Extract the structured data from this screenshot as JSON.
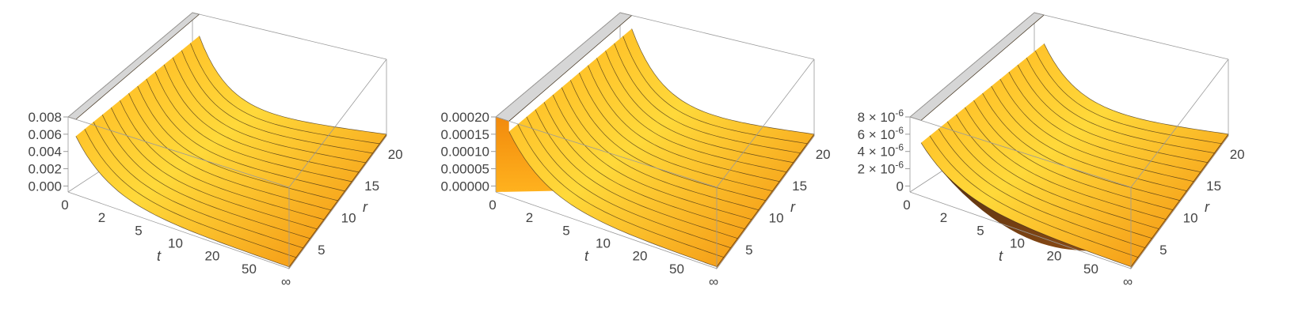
{
  "colors": {
    "surface_light": "#ffd93a",
    "surface_mid": "#ffb21e",
    "surface_dark": "#f28a0c",
    "side_dark": "#4a2b10",
    "top_face": "#d6d6d6",
    "box_line": "#9a9a9a",
    "mesh_line": "#3a2a14",
    "tick_text": "#444444"
  },
  "panels": [
    {
      "z_ticks": [
        "0.008",
        "0.006",
        "0.004",
        "0.002",
        "0.000"
      ],
      "t_axis_label": "t",
      "t_ticks": [
        "0",
        "2",
        "5",
        "10",
        "20",
        "50",
        "∞"
      ],
      "r_axis_label": "r",
      "r_ticks": [
        "20",
        "15",
        "10",
        "5"
      ]
    },
    {
      "z_ticks": [
        "0.00020",
        "0.00015",
        "0.00010",
        "0.00005",
        "0.00000"
      ],
      "t_axis_label": "t",
      "t_ticks": [
        "0",
        "2",
        "5",
        "10",
        "20",
        "50",
        "∞"
      ],
      "r_axis_label": "r",
      "r_ticks": [
        "20",
        "15",
        "10",
        "5"
      ]
    },
    {
      "z_ticks": [
        "8 × 10",
        "6 × 10",
        "4 × 10",
        "2 × 10",
        "0"
      ],
      "z_tick_exponents": [
        "-6",
        "-6",
        "-6",
        "-6",
        ""
      ],
      "t_axis_label": "t",
      "t_ticks": [
        "0",
        "2",
        "5",
        "10",
        "20",
        "50",
        "∞"
      ],
      "r_axis_label": "r",
      "r_ticks": [
        "20",
        "15",
        "10",
        "5"
      ]
    }
  ],
  "chart_data": [
    {
      "type": "surface3d",
      "x_axis": "t",
      "y_axis": "r",
      "t_ticks": [
        "0",
        "2",
        "5",
        "10",
        "20",
        "50",
        "∞"
      ],
      "r_ticks": [
        5,
        10,
        15,
        20
      ],
      "z_ticks": [
        0.0,
        0.002,
        0.004,
        0.006,
        0.008
      ],
      "zlim": [
        0,
        0.008
      ],
      "shape": "decays from peak near t=0 toward 0 as t→∞, roughly constant across r"
    },
    {
      "type": "surface3d",
      "x_axis": "t",
      "y_axis": "r",
      "t_ticks": [
        "0",
        "2",
        "5",
        "10",
        "20",
        "50",
        "∞"
      ],
      "r_ticks": [
        5,
        10,
        15,
        20
      ],
      "z_ticks": [
        0.0,
        5e-05,
        0.0001,
        0.00015,
        0.0002
      ],
      "zlim": [
        0,
        0.0002
      ],
      "shape": "rises from 0 at t=0 to a peak near small t then decays toward 0"
    },
    {
      "type": "surface3d",
      "x_axis": "t",
      "y_axis": "r",
      "t_ticks": [
        "0",
        "2",
        "5",
        "10",
        "20",
        "50",
        "∞"
      ],
      "r_ticks": [
        5,
        10,
        15,
        20
      ],
      "z_ticks": [
        0,
        2e-06,
        4e-06,
        6e-06,
        8e-06
      ],
      "zlim": [
        0,
        8e-06
      ],
      "shape": "clipped surface dipping below zero near small t, decaying toward 0 as t→∞"
    }
  ]
}
